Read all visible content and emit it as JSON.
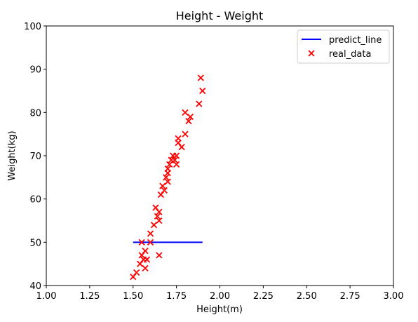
{
  "chart_data": {
    "type": "scatter",
    "title": "Height - Weight",
    "xlabel": "Height(m)",
    "ylabel": "Weight(kg)",
    "xlim": [
      1.0,
      3.0
    ],
    "ylim": [
      40,
      100
    ],
    "xticks": [
      1.0,
      1.25,
      1.5,
      1.75,
      2.0,
      2.25,
      2.5,
      2.75,
      3.0
    ],
    "xtick_labels": [
      "1.00",
      "1.25",
      "1.50",
      "1.75",
      "2.00",
      "2.25",
      "2.50",
      "2.75",
      "3.00"
    ],
    "yticks": [
      40,
      50,
      60,
      70,
      80,
      90,
      100
    ],
    "ytick_labels": [
      "40",
      "50",
      "60",
      "70",
      "80",
      "90",
      "100"
    ],
    "grid": false,
    "legend_position": "top-right",
    "series": [
      {
        "name": "predict_line",
        "kind": "line",
        "color": "#0000ff",
        "x": [
          1.5,
          1.9
        ],
        "y": [
          50.0,
          50.0
        ]
      },
      {
        "name": "real_data",
        "kind": "scatter",
        "marker": "x",
        "color": "#ff0000",
        "x": [
          1.5,
          1.52,
          1.54,
          1.55,
          1.55,
          1.56,
          1.57,
          1.57,
          1.58,
          1.6,
          1.6,
          1.62,
          1.63,
          1.64,
          1.65,
          1.65,
          1.65,
          1.66,
          1.67,
          1.68,
          1.69,
          1.7,
          1.7,
          1.7,
          1.71,
          1.72,
          1.73,
          1.74,
          1.75,
          1.75,
          1.76,
          1.76,
          1.78,
          1.8,
          1.8,
          1.82,
          1.83,
          1.88,
          1.89,
          1.9
        ],
        "y": [
          42,
          43,
          45,
          47,
          50,
          46,
          48,
          44,
          46,
          50,
          52,
          54,
          58,
          56,
          55,
          57,
          47,
          61,
          63,
          62,
          65,
          64,
          66,
          67,
          68,
          69,
          70,
          69,
          70,
          68,
          73,
          74,
          72,
          75,
          80,
          78,
          79,
          82,
          88,
          85
        ]
      }
    ]
  }
}
